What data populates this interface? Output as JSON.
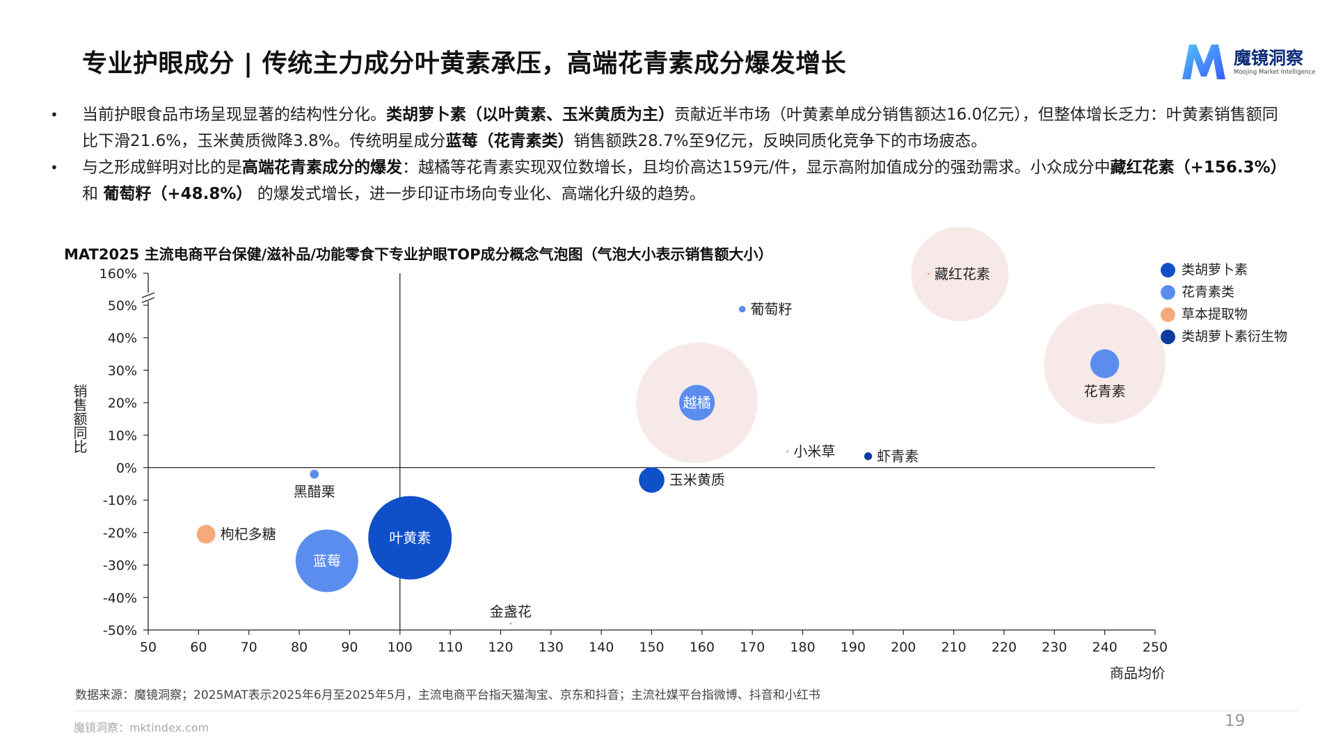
{
  "header": {
    "title": "专业护眼成分 | 传统主力成分叶黄素承压，高端花青素成分爆发增长",
    "logo_name": "魔镜洞察",
    "logo_sub": "Moojing Market Intelligence"
  },
  "bullets": [
    {
      "marker": "•",
      "segments": [
        {
          "text": "当前护眼食品市场呈现显著的结构性分化。",
          "bold": false
        },
        {
          "text": "类胡萝卜素（以叶黄素、玉米黄质为主）",
          "bold": true
        },
        {
          "text": "贡献近半市场（叶黄素单成分销售额达16.0亿元），但整体增长乏力：叶黄素销售额同比下滑21.6%，玉米黄质微降3.8%。传统明星成分",
          "bold": false
        },
        {
          "text": "蓝莓（花青素类）",
          "bold": true
        },
        {
          "text": "销售额跌28.7%至9亿元，反映同质化竞争下的市场疲态。",
          "bold": false
        }
      ]
    },
    {
      "marker": "•",
      "segments": [
        {
          "text": "与之形成鲜明对比的是",
          "bold": false
        },
        {
          "text": "高端花青素成分的爆发",
          "bold": true
        },
        {
          "text": "：越橘等花青素实现双位数增长，且均价高达159元/件，显示高附加值成分的强劲需求。小众成分中",
          "bold": false
        },
        {
          "text": "藏红花素（+156.3%） ",
          "bold": true
        },
        {
          "text": "和 ",
          "bold": false
        },
        {
          "text": "葡萄籽（+48.8%）",
          "bold": true
        },
        {
          "text": " 的爆发式增长，进一步印证市场向专业化、高端化升级的趋势。",
          "bold": false
        }
      ]
    }
  ],
  "chart_data": {
    "type": "scatter",
    "title": "MAT2025 主流电商平台保健/滋补品/功能零食下专业护眼TOP成分概念气泡图（气泡大小表示销售额大小）",
    "xlabel": "商品均价",
    "ylabel": "销售额同比",
    "xlim": [
      50,
      250
    ],
    "x_ticks": [
      50,
      60,
      70,
      80,
      90,
      100,
      110,
      120,
      130,
      140,
      150,
      160,
      170,
      180,
      190,
      200,
      210,
      220,
      230,
      240,
      250
    ],
    "ylim": [
      -50,
      50
    ],
    "y_ticks": [
      -50,
      -40,
      -30,
      -20,
      -10,
      0,
      10,
      20,
      30,
      40,
      50
    ],
    "y_tick_labels": [
      "-50%",
      "-40%",
      "-30%",
      "-20%",
      "-10%",
      "0%",
      "10%",
      "20%",
      "30%",
      "40%",
      "50%"
    ],
    "y_break_label": "160%",
    "axis_break": "between 50% and 160%",
    "reference_lines": {
      "x": 100,
      "y": 0
    },
    "legend_position": "right",
    "grid": false,
    "series": [
      {
        "name": "类胡萝卜素",
        "color": "#0f4fc8"
      },
      {
        "name": "花青素类",
        "color": "#5b8def"
      },
      {
        "name": "草本提取物",
        "color": "#f6a97a"
      },
      {
        "name": "类胡萝卜素衍生物",
        "color": "#0d3c9e"
      }
    ],
    "points": [
      {
        "label": "叶黄素",
        "series": "类胡萝卜素",
        "x": 102,
        "y": -21.6,
        "size": 16.0,
        "label_position": "inside"
      },
      {
        "label": "玉米黄质",
        "series": "类胡萝卜素",
        "x": 150,
        "y": -3.8,
        "size": 1.5,
        "label_position": "right"
      },
      {
        "label": "蓝莓",
        "series": "花青素类",
        "x": 85.5,
        "y": -28.7,
        "size": 9,
        "label_position": "inside"
      },
      {
        "label": "越橘",
        "series": "花青素类",
        "x": 159,
        "y": 20,
        "size": 2.9,
        "label_position": "inside",
        "highlight": true
      },
      {
        "label": "花青素",
        "series": "花青素类",
        "x": 240,
        "y": 32,
        "size": 1.9,
        "label_position": "below",
        "highlight": true
      },
      {
        "label": "葡萄籽",
        "series": "花青素类",
        "x": 168,
        "y": 48.8,
        "size": 0.1,
        "label_position": "right"
      },
      {
        "label": "黑醋栗",
        "series": "花青素类",
        "x": 83,
        "y": -2,
        "size": 0.18,
        "label_position": "below"
      },
      {
        "label": "枸杞多糖",
        "series": "草本提取物",
        "x": 61.5,
        "y": -20.5,
        "size": 0.8,
        "label_position": "right"
      },
      {
        "label": "金盏花",
        "series": "草本提取物",
        "x": 122,
        "y": -48,
        "size": 0.005,
        "label_position": "above"
      },
      {
        "label": "小米草",
        "series": "草本提取物",
        "x": 177,
        "y": 5,
        "size": 0.005,
        "label_position": "right"
      },
      {
        "label": "藏红花素",
        "series": "草本提取物",
        "x": 205,
        "y": 156.3,
        "size": 0.005,
        "label_position": "right",
        "highlight": true
      },
      {
        "label": "虾青素",
        "series": "类胡萝卜素衍生物",
        "x": 193,
        "y": 3.5,
        "size": 0.14,
        "label_position": "right"
      }
    ]
  },
  "footer": {
    "source": "数据来源：魔镜洞察；2025MAT表示2025年6月至2025年5月，主流电商平台指天猫淘宝、京东和抖音；主流社媒平台指微博、抖音和小红书",
    "site": "魔镜洞察：mktindex.com",
    "page": "19"
  }
}
